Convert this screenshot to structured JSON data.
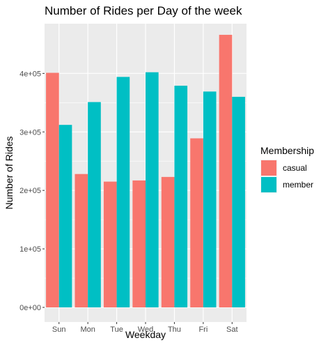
{
  "chart_data": {
    "type": "bar",
    "title": "Number of Rides per Day of the week",
    "xlabel": "Weekday",
    "ylabel": "Number of Rides",
    "categories": [
      "Sun",
      "Mon",
      "Tue",
      "Wed",
      "Thu",
      "Fri",
      "Sat"
    ],
    "series": [
      {
        "name": "casual",
        "color": "#F8766D",
        "values": [
          401000,
          228000,
          215000,
          217000,
          223000,
          289000,
          466000
        ]
      },
      {
        "name": "member",
        "color": "#00BFC4",
        "values": [
          312000,
          351000,
          394000,
          402000,
          379000,
          369000,
          360000
        ]
      }
    ],
    "ylim": [
      -25000,
      485000
    ],
    "yticks": [
      0,
      100000,
      200000,
      300000,
      400000
    ],
    "ytick_labels": [
      "0e+00",
      "1e+05",
      "2e+05",
      "3e+05",
      "4e+05"
    ],
    "grid": true,
    "legend": {
      "title": "Membership",
      "position": "right",
      "entries": [
        "casual",
        "member"
      ]
    },
    "panel_background": "#EBEBEB"
  }
}
